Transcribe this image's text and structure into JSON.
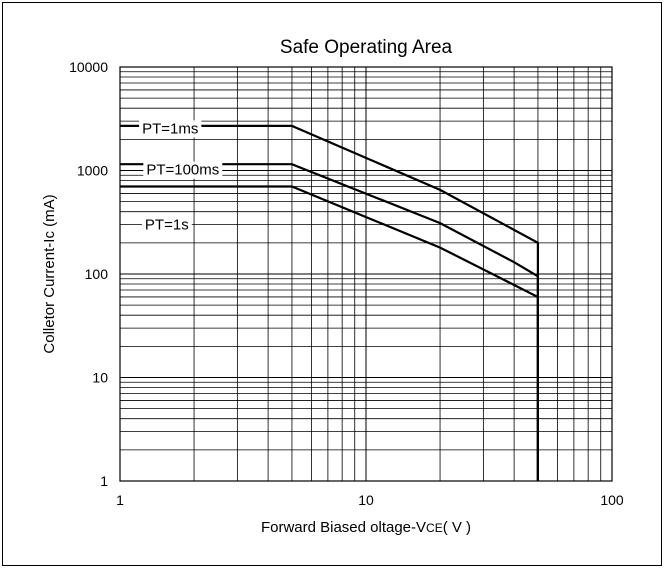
{
  "chart_data": {
    "type": "line",
    "title": "Safe Operating Area",
    "xlabel_main": "Forward Biased oltage-V",
    "xlabel_sub": "CE",
    "xlabel_unit": "( V )",
    "ylabel": "Colletor Current-Ic (mA)",
    "x_scale": "log",
    "y_scale": "log",
    "xlim": [
      1,
      100
    ],
    "ylim": [
      1,
      10000
    ],
    "grid": true,
    "x_ticks": [
      {
        "value": 1,
        "label": "1"
      },
      {
        "value": 10,
        "label": "10"
      },
      {
        "value": 100,
        "label": "100"
      }
    ],
    "y_ticks": [
      {
        "value": 1,
        "label": "1"
      },
      {
        "value": 10,
        "label": "10"
      },
      {
        "value": 100,
        "label": "100"
      },
      {
        "value": 1000,
        "label": "1000"
      },
      {
        "value": 10000,
        "label": "10000"
      }
    ],
    "series": [
      {
        "name": "PT=1ms",
        "label_at": [
          1.6,
          2550
        ],
        "points": [
          [
            1,
            2700
          ],
          [
            5,
            2700
          ],
          [
            20,
            650
          ],
          [
            50,
            200
          ],
          [
            50,
            1
          ]
        ]
      },
      {
        "name": "PT=100ms",
        "label_at": [
          1.8,
          1020
        ],
        "points": [
          [
            1,
            1150
          ],
          [
            5,
            1150
          ],
          [
            20,
            310
          ],
          [
            40,
            130
          ],
          [
            50,
            95
          ],
          [
            50,
            1
          ]
        ]
      },
      {
        "name": "PT=1s",
        "label_at": [
          1.55,
          300
        ],
        "points": [
          [
            1,
            700
          ],
          [
            5,
            700
          ],
          [
            20,
            180
          ],
          [
            50,
            60
          ],
          [
            50,
            1
          ]
        ]
      }
    ]
  }
}
